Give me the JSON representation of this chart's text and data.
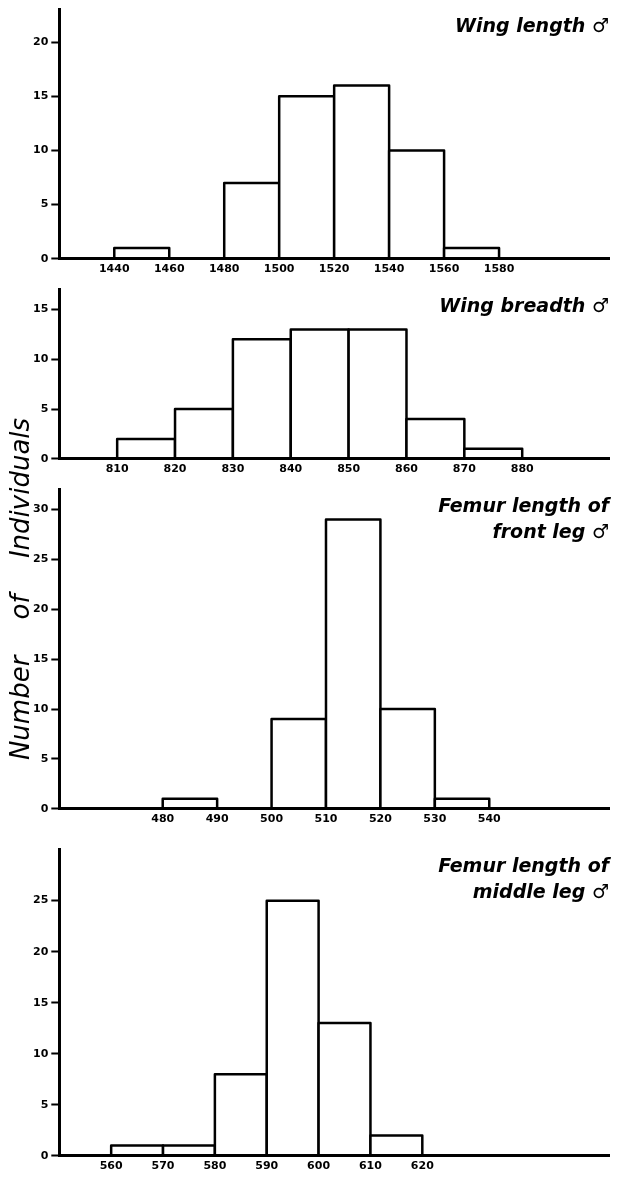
{
  "chart_data": [
    {
      "type": "histogram",
      "title": "Wing length ♂",
      "bins": [
        1440,
        1460,
        1480,
        1500,
        1520,
        1540,
        1560,
        1580
      ],
      "values": [
        1,
        0,
        7,
        15,
        16,
        10,
        1
      ],
      "color": "#ffffff",
      "xlim": [
        1420,
        1620
      ],
      "xticks": [
        1440,
        1460,
        1480,
        1500,
        1520,
        1540,
        1560,
        1580
      ],
      "ylim": [
        0,
        23
      ],
      "yticks": [
        0,
        5,
        10,
        15,
        20
      ],
      "grid": false,
      "legend": false
    },
    {
      "type": "histogram",
      "title": "Wing breadth ♂",
      "bins": [
        800,
        810,
        820,
        830,
        840,
        850,
        860,
        870,
        880
      ],
      "values": [
        0,
        2,
        5,
        12,
        13,
        13,
        4,
        1
      ],
      "color": "#ffffff",
      "xlim": [
        800,
        895
      ],
      "xticks": [
        810,
        820,
        830,
        840,
        850,
        860,
        870,
        880
      ],
      "ylim": [
        0,
        17
      ],
      "yticks": [
        0,
        5,
        10,
        15
      ],
      "grid": false,
      "legend": false
    },
    {
      "type": "histogram",
      "title": "Femur length of front leg ♂",
      "ylabel": "Number of Individuals",
      "bins": [
        480,
        490,
        500,
        510,
        520,
        530,
        540
      ],
      "values": [
        1,
        0,
        9,
        29,
        10,
        1
      ],
      "color": "#ffffff",
      "xlim": [
        461,
        562
      ],
      "xticks": [
        480,
        490,
        500,
        510,
        520,
        530,
        540
      ],
      "ylim": [
        0,
        32
      ],
      "yticks": [
        0,
        5,
        10,
        15,
        20,
        25,
        30
      ],
      "grid": false,
      "legend": false
    },
    {
      "type": "histogram",
      "title": "Femur length of middle leg ♂",
      "bins": [
        560,
        570,
        580,
        590,
        600,
        610,
        620
      ],
      "values": [
        1,
        1,
        8,
        25,
        13,
        2
      ],
      "color": "#ffffff",
      "xlim": [
        550,
        656
      ],
      "xticks": [
        560,
        570,
        580,
        590,
        600,
        610,
        620
      ],
      "ylim": [
        0,
        30
      ],
      "yticks": [
        0,
        5,
        10,
        15,
        20,
        25
      ],
      "grid": false,
      "legend": false
    }
  ]
}
